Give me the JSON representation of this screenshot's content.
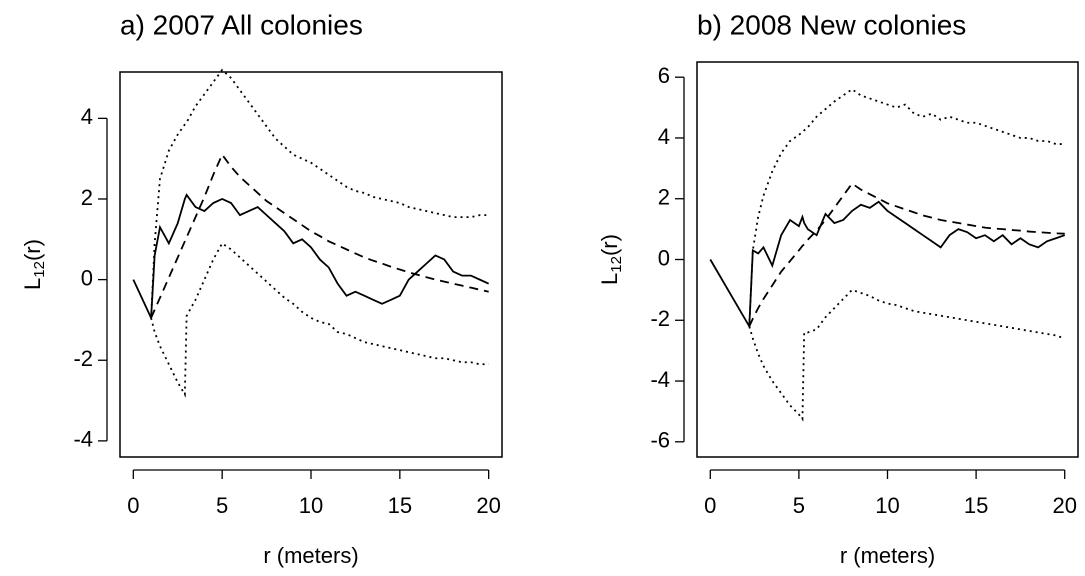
{
  "chart_data": [
    {
      "type": "line",
      "title": "a) 2007 All colonies",
      "xlabel": "r (meters)",
      "ylabel_main": "L",
      "ylabel_subscript": "12",
      "ylabel_suffix": "(r)",
      "x": [
        0,
        1,
        1.2,
        1.5,
        2,
        2.5,
        2.9,
        3,
        3.5,
        4,
        4.5,
        5,
        5.5,
        6,
        6.5,
        7,
        7.5,
        8,
        8.5,
        9,
        9.5,
        10,
        10.5,
        11,
        11.5,
        12,
        12.5,
        13,
        13.5,
        14,
        14.5,
        15,
        15.5,
        16,
        16.5,
        17,
        17.5,
        18,
        18.5,
        19,
        19.5,
        20
      ],
      "series": [
        {
          "color": "#000000",
          "dash": "solid",
          "values": [
            0,
            -0.95,
            0.6,
            1.3,
            0.9,
            1.4,
            2.0,
            2.1,
            1.8,
            1.7,
            1.9,
            2.0,
            1.9,
            1.6,
            1.7,
            1.8,
            1.6,
            1.4,
            1.2,
            0.9,
            1.0,
            0.8,
            0.5,
            0.3,
            -0.1,
            -0.4,
            -0.3,
            -0.4,
            -0.5,
            -0.6,
            -0.5,
            -0.4,
            0.0,
            0.2,
            0.4,
            0.6,
            0.5,
            0.2,
            0.1,
            0.1,
            0.0,
            -0.1
          ]
        },
        {
          "color": "#000000",
          "dash": "dashed",
          "values": [
            null,
            -0.95,
            -0.75,
            -0.45,
            0.05,
            0.55,
            0.95,
            1.05,
            1.55,
            2.05,
            2.6,
            3.1,
            2.8,
            2.55,
            2.35,
            2.15,
            1.95,
            1.8,
            1.65,
            1.5,
            1.35,
            1.2,
            1.08,
            0.95,
            0.85,
            0.75,
            0.65,
            0.55,
            0.47,
            0.4,
            0.32,
            0.25,
            0.18,
            0.12,
            0.06,
            0.0,
            -0.05,
            -0.1,
            -0.15,
            -0.2,
            -0.25,
            -0.3
          ]
        },
        {
          "color": "#000000",
          "dash": "dotted",
          "values": [
            null,
            -0.95,
            0.9,
            2.5,
            3.2,
            3.6,
            3.85,
            3.9,
            4.3,
            4.6,
            4.9,
            5.2,
            5.0,
            4.7,
            4.4,
            4.1,
            3.8,
            3.5,
            3.3,
            3.1,
            3.0,
            2.9,
            2.75,
            2.6,
            2.45,
            2.3,
            2.2,
            2.15,
            2.05,
            2.0,
            1.95,
            1.9,
            1.8,
            1.75,
            1.7,
            1.65,
            1.6,
            1.55,
            1.55,
            1.55,
            1.6,
            1.6
          ]
        },
        {
          "color": "#000000",
          "dash": "dotted",
          "values": [
            null,
            -0.95,
            -1.3,
            -1.65,
            -2.1,
            -2.55,
            -2.85,
            -0.9,
            -0.5,
            0.0,
            0.5,
            0.9,
            0.75,
            0.55,
            0.35,
            0.15,
            -0.05,
            -0.25,
            -0.45,
            -0.6,
            -0.8,
            -0.95,
            -1.05,
            -1.1,
            -1.3,
            -1.35,
            -1.45,
            -1.55,
            -1.6,
            -1.65,
            -1.7,
            -1.75,
            -1.8,
            -1.85,
            -1.9,
            -1.95,
            -1.95,
            -2.0,
            -2.05,
            -2.05,
            -2.1,
            -2.1
          ]
        }
      ],
      "xlim": [
        -0.75,
        20.75
      ],
      "xticks": [
        0,
        5,
        10,
        15,
        20
      ],
      "ylim": [
        -4.4,
        5.15
      ],
      "yticks": [
        -4,
        -2,
        0,
        2,
        4
      ],
      "grid": false
    },
    {
      "type": "line",
      "title": "b) 2008 New colonies",
      "xlabel": "r (meters)",
      "ylabel_main": "L",
      "ylabel_subscript": "12",
      "ylabel_suffix": "(r)",
      "x": [
        0,
        2.2,
        2.4,
        2.7,
        3,
        3.5,
        4,
        4.5,
        5,
        5.2,
        5.3,
        5.5,
        6,
        6.5,
        7,
        7.5,
        8,
        8.5,
        9,
        9.5,
        10,
        10.5,
        11,
        11.5,
        12,
        12.5,
        13,
        13.5,
        14,
        14.5,
        15,
        15.5,
        16,
        16.5,
        17,
        17.5,
        18,
        18.5,
        19,
        19.5,
        20
      ],
      "series": [
        {
          "color": "#000000",
          "dash": "solid",
          "values": [
            0,
            -2.2,
            0.3,
            0.2,
            0.4,
            -0.2,
            0.8,
            1.3,
            1.1,
            1.4,
            1.2,
            1.0,
            0.8,
            1.5,
            1.2,
            1.3,
            1.6,
            1.8,
            1.7,
            1.9,
            1.6,
            1.4,
            1.2,
            1.0,
            0.8,
            0.6,
            0.4,
            0.8,
            1.0,
            0.9,
            0.7,
            0.8,
            0.6,
            0.8,
            0.5,
            0.7,
            0.5,
            0.4,
            0.6,
            0.7,
            0.8
          ]
        },
        {
          "color": "#000000",
          "dash": "dashed",
          "values": [
            null,
            -2.2,
            -1.95,
            -1.6,
            -1.3,
            -0.85,
            -0.4,
            -0.05,
            0.3,
            0.45,
            0.5,
            0.65,
            0.95,
            1.3,
            1.7,
            2.1,
            2.5,
            2.3,
            2.15,
            2.0,
            1.85,
            1.75,
            1.65,
            1.55,
            1.45,
            1.38,
            1.3,
            1.25,
            1.2,
            1.15,
            1.1,
            1.05,
            1.02,
            1.0,
            0.97,
            0.95,
            0.92,
            0.9,
            0.88,
            0.86,
            0.85
          ]
        },
        {
          "color": "#000000",
          "dash": "dotted",
          "values": [
            null,
            -2.2,
            0.3,
            1.4,
            2.1,
            2.9,
            3.5,
            3.9,
            4.1,
            4.2,
            4.25,
            4.35,
            4.7,
            4.95,
            5.2,
            5.4,
            5.6,
            5.4,
            5.3,
            5.2,
            5.1,
            5.0,
            5.1,
            4.8,
            4.7,
            4.8,
            4.6,
            4.7,
            4.6,
            4.5,
            4.5,
            4.4,
            4.3,
            4.2,
            4.1,
            4.0,
            4.0,
            3.9,
            3.9,
            3.8,
            3.8
          ]
        },
        {
          "color": "#000000",
          "dash": "dotted",
          "values": [
            null,
            -2.2,
            -2.6,
            -3.1,
            -3.5,
            -4.0,
            -4.4,
            -4.8,
            -5.1,
            -5.25,
            -2.4,
            -2.4,
            -2.3,
            -1.9,
            -1.6,
            -1.3,
            -1.0,
            -1.1,
            -1.2,
            -1.35,
            -1.45,
            -1.5,
            -1.6,
            -1.7,
            -1.75,
            -1.8,
            -1.85,
            -1.9,
            -1.95,
            -2.0,
            -2.05,
            -2.1,
            -2.15,
            -2.2,
            -2.25,
            -2.3,
            -2.35,
            -2.4,
            -2.45,
            -2.5,
            -2.6
          ]
        }
      ],
      "xlim": [
        -0.75,
        20.75
      ],
      "xticks": [
        0,
        5,
        10,
        15,
        20
      ],
      "ylim": [
        -6.5,
        6.5
      ],
      "yticks": [
        -6,
        -4,
        -2,
        0,
        2,
        4,
        6
      ],
      "grid": false
    }
  ]
}
